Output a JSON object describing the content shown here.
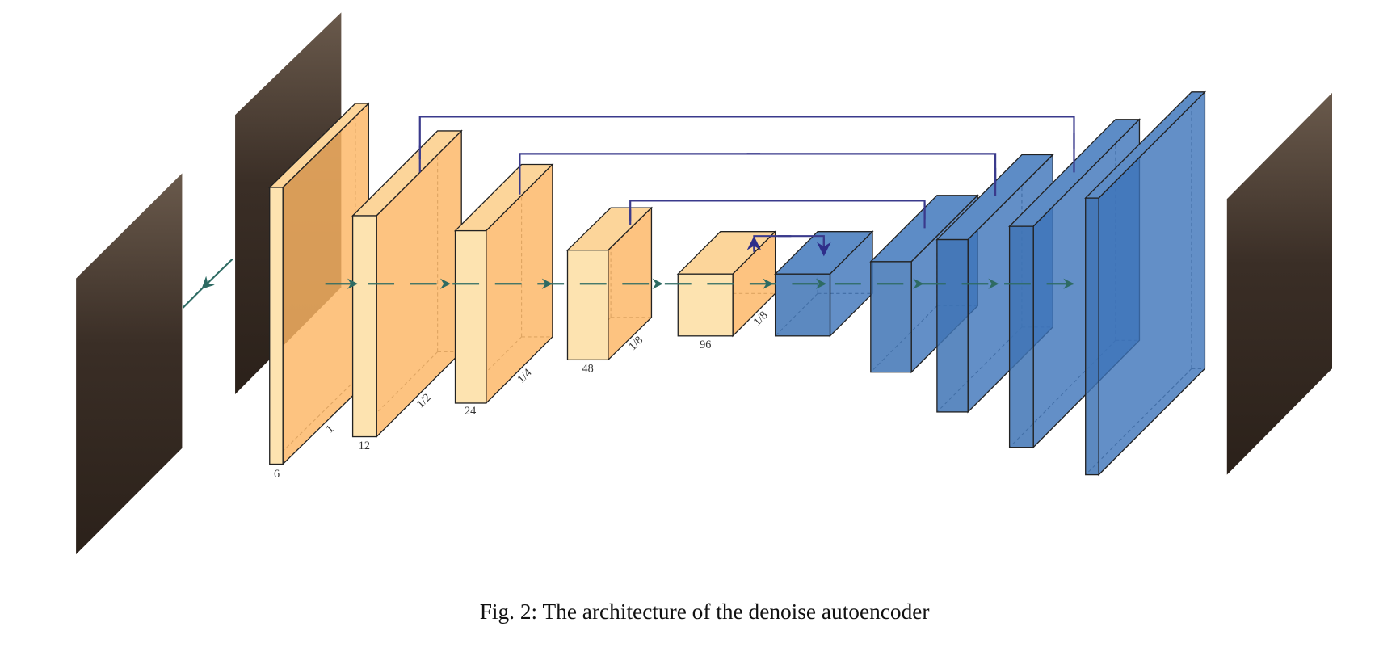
{
  "blocks": [
    {
      "channels": "6",
      "scale": "1"
    },
    {
      "channels": "12",
      "scale": "1/2"
    },
    {
      "channels": "24",
      "scale": "1/4"
    },
    {
      "channels": "48",
      "scale": "1/8"
    },
    {
      "channels": "96",
      "scale": "1/8"
    }
  ],
  "caption": "Fig. 2: The architecture of the denoise autoencoder"
}
